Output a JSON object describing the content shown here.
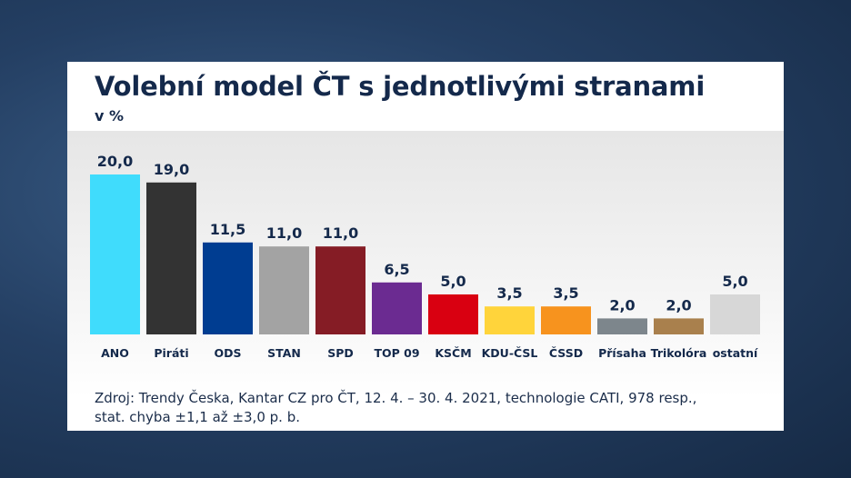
{
  "chart_data": {
    "type": "bar",
    "title": "Volební model ČT s jednotlivými stranami",
    "subtitle": "v %",
    "categories": [
      "ANO",
      "Piráti",
      "ODS",
      "STAN",
      "SPD",
      "TOP 09",
      "KSČM",
      "KDU-ČSL",
      "ČSSD",
      "Přísaha",
      "Trikolóra",
      "ostatní"
    ],
    "values": [
      20.0,
      19.0,
      11.5,
      11.0,
      11.0,
      6.5,
      5.0,
      3.5,
      3.5,
      2.0,
      2.0,
      5.0
    ],
    "value_labels": [
      "20,0",
      "19,0",
      "11,5",
      "11,0",
      "11,0",
      "6,5",
      "5,0",
      "3,5",
      "3,5",
      "2,0",
      "2,0",
      "5,0"
    ],
    "colors": [
      "#40dcfc",
      "#333333",
      "#003d91",
      "#a3a3a3",
      "#851c25",
      "#6b2b91",
      "#d90011",
      "#ffd43b",
      "#f7931e",
      "#7d868c",
      "#a9804d",
      "#d7d7d7"
    ],
    "xlabel": "",
    "ylabel": "",
    "ylim": [
      0,
      21
    ],
    "grid": false,
    "legend": "none"
  },
  "source": {
    "line1": "Zdroj: Trendy Česka, Kantar CZ pro ČT, 12. 4. – 30. 4. 2021, technologie CATI, 978 resp.,",
    "line2": "stat. chyba ±1,1 až ±3,0 p. b."
  }
}
